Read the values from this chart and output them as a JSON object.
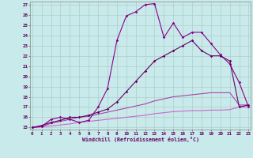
{
  "xlabel": "Windchill (Refroidissement éolien,°C)",
  "background_color": "#c8eaea",
  "grid_color": "#b0cccc",
  "xmin": 0,
  "xmax": 23,
  "ymin": 15,
  "ymax": 27,
  "series1_x": [
    0,
    1,
    2,
    3,
    4,
    5,
    6,
    7,
    8,
    9,
    10,
    11,
    12,
    13,
    14,
    15,
    16,
    17,
    18,
    19,
    20,
    21,
    22,
    23
  ],
  "series1_y": [
    15,
    15.1,
    15.8,
    16.0,
    15.8,
    15.5,
    15.7,
    17.0,
    18.8,
    23.5,
    25.9,
    26.3,
    27.0,
    27.1,
    23.8,
    25.2,
    23.8,
    24.3,
    24.3,
    23.2,
    22.1,
    21.2,
    19.4,
    17.0
  ],
  "series1_color": "#880088",
  "series2_x": [
    0,
    1,
    2,
    3,
    4,
    5,
    6,
    7,
    8,
    9,
    10,
    11,
    12,
    13,
    14,
    15,
    16,
    17,
    18,
    19,
    20,
    21,
    22,
    23
  ],
  "series2_y": [
    15,
    15.2,
    15.5,
    15.7,
    16.0,
    16.0,
    16.2,
    16.5,
    16.8,
    17.5,
    18.5,
    19.5,
    20.5,
    21.5,
    22.0,
    22.5,
    23.0,
    23.5,
    22.5,
    22.0,
    22.0,
    21.5,
    17.0,
    17.2
  ],
  "series2_color": "#660066",
  "series3_x": [
    0,
    1,
    2,
    3,
    4,
    5,
    6,
    7,
    8,
    9,
    10,
    11,
    12,
    13,
    14,
    15,
    16,
    17,
    18,
    19,
    20,
    21,
    22,
    23
  ],
  "series3_y": [
    15,
    15.1,
    15.4,
    15.6,
    15.8,
    16.0,
    16.1,
    16.3,
    16.5,
    16.7,
    16.9,
    17.1,
    17.3,
    17.6,
    17.8,
    18.0,
    18.1,
    18.2,
    18.3,
    18.4,
    18.4,
    18.4,
    17.2,
    17.2
  ],
  "series3_color": "#aa44aa",
  "series4_x": [
    0,
    1,
    2,
    3,
    4,
    5,
    6,
    7,
    8,
    9,
    10,
    11,
    12,
    13,
    14,
    15,
    16,
    17,
    18,
    19,
    20,
    21,
    22,
    23
  ],
  "series4_y": [
    15,
    15.05,
    15.15,
    15.25,
    15.35,
    15.5,
    15.6,
    15.7,
    15.8,
    15.9,
    16.0,
    16.1,
    16.2,
    16.35,
    16.45,
    16.55,
    16.6,
    16.65,
    16.65,
    16.7,
    16.7,
    16.75,
    17.0,
    17.0
  ],
  "series4_color": "#cc66cc"
}
